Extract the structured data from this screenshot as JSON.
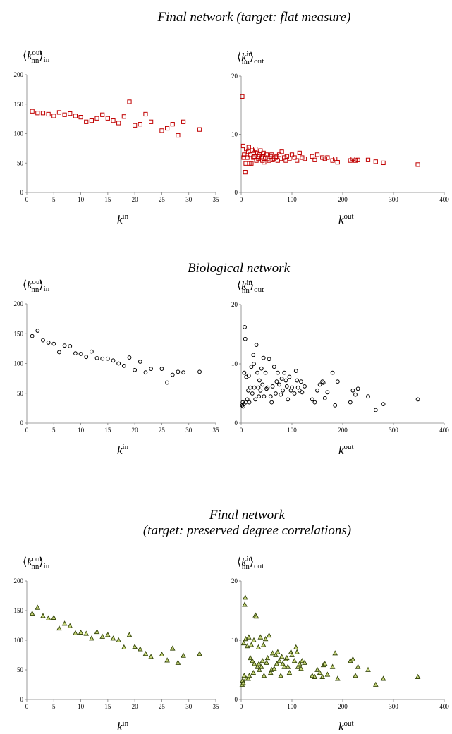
{
  "panels": [
    {
      "title_line1": "Final network (target: flat measure)",
      "title_line2": "",
      "marker": {
        "shape": "square",
        "stroke": "#c00000",
        "fill": "none"
      }
    },
    {
      "title_line1": "Biological network",
      "title_line2": "",
      "marker": {
        "shape": "circle",
        "stroke": "#000000",
        "fill": "none"
      }
    },
    {
      "title_line1": "Final network",
      "title_line2": "(target: preserved degree correlations)",
      "marker": {
        "shape": "triangle",
        "stroke": "#3a4a10",
        "fill": "#c8d87a"
      }
    }
  ],
  "chart_data": [
    {
      "type": "scatter",
      "panel": 0,
      "ylabel": "⟨k_nn^out⟩_in",
      "ylabel_main": "k",
      "ylabel_sub": "nn",
      "ylabel_sup": "out",
      "ylabel_cond": "in",
      "xlabel": "k^in",
      "xlabel_main": "k",
      "xlabel_sup": "in",
      "xlim": [
        0,
        35
      ],
      "ylim": [
        0,
        200
      ],
      "xticks": [
        0,
        5,
        10,
        15,
        20,
        25,
        30,
        35
      ],
      "yticks": [
        0,
        50,
        100,
        150,
        200
      ],
      "x": [
        1,
        2,
        3,
        4,
        5,
        6,
        7,
        8,
        9,
        10,
        11,
        12,
        13,
        14,
        15,
        16,
        17,
        18,
        19,
        20,
        21,
        22,
        23,
        25,
        26,
        27,
        28,
        29,
        32
      ],
      "y": [
        138,
        135,
        135,
        133,
        130,
        136,
        132,
        134,
        130,
        128,
        120,
        122,
        126,
        132,
        126,
        122,
        118,
        129,
        154,
        114,
        116,
        133,
        120,
        105,
        109,
        116,
        97,
        120,
        107
      ]
    },
    {
      "type": "scatter",
      "panel": 0,
      "ylabel": "⟨k_nn^in⟩_out",
      "ylabel_main": "k",
      "ylabel_sub": "nn",
      "ylabel_sup": "in",
      "ylabel_cond": "out",
      "xlabel": "k^out",
      "xlabel_main": "k",
      "xlabel_sup": "out",
      "xlim": [
        0,
        400
      ],
      "ylim": [
        0,
        20
      ],
      "xticks": [
        0,
        100,
        200,
        300,
        400
      ],
      "yticks": [
        0,
        10,
        20
      ],
      "x": [
        2,
        4,
        5,
        6,
        8,
        9,
        10,
        12,
        14,
        15,
        16,
        18,
        20,
        22,
        24,
        25,
        26,
        28,
        30,
        32,
        34,
        35,
        36,
        38,
        40,
        42,
        44,
        45,
        48,
        50,
        52,
        55,
        58,
        60,
        62,
        65,
        68,
        70,
        72,
        75,
        78,
        80,
        85,
        88,
        90,
        95,
        100,
        105,
        110,
        115,
        120,
        125,
        140,
        145,
        150,
        160,
        165,
        170,
        180,
        185,
        190,
        215,
        220,
        225,
        230,
        250,
        265,
        280,
        348
      ],
      "y": [
        16.5,
        8,
        6,
        6.5,
        3.5,
        5,
        7.5,
        6,
        7,
        7.8,
        5,
        6.5,
        5,
        7.2,
        6,
        6.8,
        6.2,
        7.5,
        5.5,
        6.8,
        5.8,
        6.2,
        6.5,
        7.2,
        6,
        5.5,
        6.8,
        5.2,
        6,
        6.5,
        5.8,
        5.5,
        6.2,
        6.5,
        5.6,
        5.8,
        6,
        6.2,
        5.5,
        6.5,
        5.8,
        7,
        6,
        5.5,
        6.2,
        5.8,
        6.5,
        6,
        5.5,
        6.8,
        6,
        5.8,
        6.2,
        5.6,
        6.5,
        6,
        5.8,
        6,
        5.5,
        5.8,
        5.2,
        5.5,
        5.8,
        5.5,
        5.6,
        5.6,
        5.3,
        5.1,
        4.8
      ]
    },
    {
      "type": "scatter",
      "panel": 1,
      "ylabel": "⟨k_nn^out⟩_in",
      "ylabel_main": "k",
      "ylabel_sub": "nn",
      "ylabel_sup": "out",
      "ylabel_cond": "in",
      "xlabel": "k^in",
      "xlabel_main": "k",
      "xlabel_sup": "in",
      "xlim": [
        0,
        35
      ],
      "ylim": [
        0,
        200
      ],
      "xticks": [
        0,
        5,
        10,
        15,
        20,
        25,
        30,
        35
      ],
      "yticks": [
        0,
        50,
        100,
        150,
        200
      ],
      "x": [
        1,
        2,
        3,
        4,
        5,
        6,
        7,
        8,
        9,
        10,
        11,
        12,
        13,
        14,
        15,
        16,
        17,
        18,
        19,
        20,
        21,
        22,
        23,
        25,
        26,
        27,
        28,
        29,
        32
      ],
      "y": [
        146,
        155,
        139,
        135,
        133,
        119,
        130,
        129,
        117,
        116,
        111,
        120,
        109,
        108,
        108,
        105,
        100,
        96,
        110,
        89,
        103,
        85,
        91,
        91,
        68,
        81,
        86,
        85,
        86
      ]
    },
    {
      "type": "scatter",
      "panel": 1,
      "ylabel": "⟨k_nn^in⟩_out",
      "ylabel_main": "k",
      "ylabel_sub": "nn",
      "ylabel_sup": "in",
      "ylabel_cond": "out",
      "xlabel": "k^out",
      "xlabel_main": "k",
      "xlabel_sup": "out",
      "xlim": [
        0,
        400
      ],
      "ylim": [
        0,
        20
      ],
      "xticks": [
        0,
        100,
        200,
        300,
        400
      ],
      "yticks": [
        0,
        10,
        20
      ],
      "x": [
        2,
        3,
        4,
        5,
        6,
        7,
        8,
        9,
        10,
        12,
        14,
        15,
        16,
        18,
        20,
        22,
        24,
        25,
        26,
        28,
        30,
        32,
        34,
        35,
        36,
        38,
        40,
        42,
        44,
        45,
        48,
        50,
        52,
        55,
        58,
        60,
        62,
        65,
        68,
        70,
        72,
        75,
        78,
        80,
        82,
        85,
        88,
        90,
        92,
        95,
        98,
        100,
        105,
        108,
        110,
        112,
        115,
        118,
        120,
        125,
        140,
        145,
        150,
        155,
        160,
        162,
        165,
        170,
        180,
        185,
        190,
        215,
        220,
        225,
        230,
        250,
        265,
        280,
        348
      ],
      "y": [
        3,
        3.5,
        2.8,
        3.2,
        8.5,
        16.2,
        14.2,
        3.5,
        7.8,
        4,
        5.5,
        8,
        3.5,
        6,
        9.5,
        5,
        11.5,
        10,
        6,
        4,
        13.2,
        8.5,
        6,
        4.5,
        7.2,
        5.5,
        9.2,
        6.5,
        11,
        4.5,
        8.5,
        5.8,
        6,
        10.8,
        4.5,
        3.5,
        6.2,
        9.5,
        5,
        7,
        8.5,
        6.5,
        4.8,
        7.5,
        5.5,
        8.5,
        7.2,
        6.2,
        4,
        7.8,
        5.5,
        6,
        5,
        8.8,
        7.2,
        6,
        5.5,
        7,
        5.2,
        6.2,
        4,
        3.5,
        5.5,
        6.5,
        7,
        6.8,
        4.2,
        5.2,
        8.5,
        3,
        7,
        3.5,
        5.5,
        4.8,
        5.8,
        4.5,
        2.2,
        3.2,
        4
      ]
    },
    {
      "type": "scatter",
      "panel": 2,
      "ylabel": "⟨k_nn^out⟩_in",
      "ylabel_main": "k",
      "ylabel_sub": "nn",
      "ylabel_sup": "out",
      "ylabel_cond": "in",
      "xlabel": "k^in",
      "xlabel_main": "k",
      "xlabel_sup": "in",
      "xlim": [
        0,
        35
      ],
      "ylim": [
        0,
        200
      ],
      "xticks": [
        0,
        5,
        10,
        15,
        20,
        25,
        30,
        35
      ],
      "yticks": [
        0,
        50,
        100,
        150,
        200
      ],
      "x": [
        1,
        2,
        3,
        4,
        5,
        6,
        7,
        8,
        9,
        10,
        11,
        12,
        13,
        14,
        15,
        16,
        17,
        18,
        19,
        20,
        21,
        22,
        23,
        25,
        26,
        27,
        28,
        29,
        32
      ],
      "y": [
        145,
        155,
        141,
        137,
        138,
        120,
        128,
        124,
        112,
        113,
        111,
        103,
        114,
        106,
        109,
        103,
        100,
        88,
        109,
        89,
        85,
        77,
        72,
        76,
        66,
        86,
        62,
        74,
        77
      ]
    },
    {
      "type": "scatter",
      "panel": 2,
      "ylabel": "⟨k_nn^in⟩_out",
      "ylabel_main": "k",
      "ylabel_sub": "nn",
      "ylabel_sup": "in",
      "ylabel_cond": "out",
      "xlabel": "k^out",
      "xlabel_main": "k",
      "xlabel_sup": "out",
      "xlim": [
        0,
        400
      ],
      "ylim": [
        0,
        20
      ],
      "xticks": [
        0,
        100,
        200,
        300,
        400
      ],
      "yticks": [
        0,
        10,
        20
      ],
      "x": [
        2,
        3,
        4,
        5,
        6,
        7,
        8,
        9,
        10,
        12,
        14,
        15,
        16,
        18,
        20,
        22,
        24,
        25,
        26,
        28,
        30,
        32,
        34,
        35,
        36,
        38,
        40,
        42,
        44,
        45,
        48,
        50,
        52,
        55,
        58,
        60,
        62,
        65,
        68,
        70,
        72,
        75,
        78,
        80,
        82,
        85,
        88,
        90,
        92,
        95,
        98,
        100,
        105,
        108,
        110,
        112,
        115,
        118,
        120,
        125,
        140,
        145,
        150,
        155,
        160,
        162,
        165,
        170,
        180,
        185,
        190,
        215,
        220,
        225,
        230,
        250,
        265,
        280,
        348
      ],
      "y": [
        2.5,
        3.2,
        2.8,
        9.5,
        4,
        16,
        17.2,
        10.2,
        3.5,
        9,
        3.5,
        10.5,
        4,
        7,
        9.2,
        6.5,
        4.5,
        10,
        6,
        14.2,
        14,
        5.5,
        8.8,
        6,
        5,
        10.5,
        5.5,
        6.5,
        9.2,
        4,
        10.2,
        6.2,
        7,
        10.8,
        4.5,
        5,
        7.8,
        5.2,
        7.5,
        6,
        8,
        6.5,
        4,
        7.2,
        6,
        5.5,
        6.8,
        7,
        5.5,
        4.5,
        8,
        7.5,
        6.5,
        8.8,
        8,
        5.5,
        6,
        5.2,
        6.5,
        6.2,
        4,
        3.8,
        5,
        4.5,
        3.8,
        5.8,
        6,
        4.2,
        5.5,
        7.8,
        3.5,
        6.5,
        6.8,
        4,
        5.5,
        5,
        2.5,
        3.5,
        3.8
      ]
    }
  ]
}
